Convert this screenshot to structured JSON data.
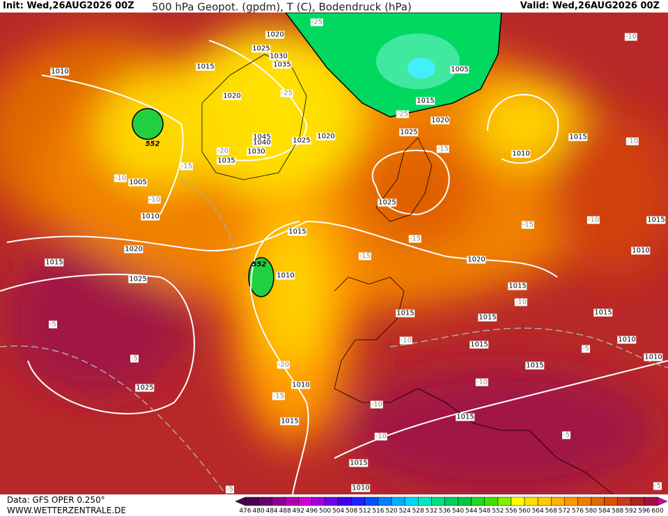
{
  "header": {
    "init": "Init: Wed,26AUG2026 00Z",
    "title": "500 hPa Geopot. (gpdm), T (C), Bodendruck (hPa)",
    "valid": "Valid: Wed,26AUG2026 00Z"
  },
  "footer": {
    "data": "Data: GFS OPER 0.250°",
    "site": "WWW.WETTERZENTRALE.DE"
  },
  "colorbar": {
    "ticks": [
      476,
      480,
      484,
      488,
      492,
      496,
      500,
      504,
      508,
      512,
      516,
      520,
      524,
      528,
      532,
      536,
      540,
      544,
      548,
      552,
      556,
      560,
      564,
      568,
      572,
      576,
      580,
      584,
      588,
      592,
      596,
      600
    ],
    "colors": [
      "#4b0050",
      "#6a006e",
      "#8c0090",
      "#b000b4",
      "#d000d8",
      "#a000e0",
      "#7000e8",
      "#4000f0",
      "#2020ff",
      "#0050ff",
      "#0080ff",
      "#00b0ff",
      "#00d8ff",
      "#00e8c0",
      "#00e080",
      "#00d060",
      "#00c840",
      "#20d820",
      "#40e000",
      "#80f000",
      "#ffff00",
      "#ffe000",
      "#ffc800",
      "#ffb000",
      "#ff9800",
      "#f08000",
      "#e06800",
      "#d85000",
      "#c83820",
      "#b02020",
      "#a01040",
      "#d000a0"
    ]
  },
  "labels": {
    "isobars": [
      "1010",
      "1020",
      "1025",
      "1030",
      "1035",
      "1015",
      "1020",
      "1045",
      "1040",
      "1030",
      "1035",
      "1025",
      "1020",
      "1005",
      "1010",
      "1020",
      "1015",
      "1025",
      "1025",
      "1015",
      "1010",
      "1010",
      "1015",
      "1015",
      "1010",
      "1005",
      "1015",
      "1020",
      "1025",
      "1010",
      "1015",
      "1025",
      "1020",
      "1015",
      "1015",
      "1015",
      "1015",
      "1015",
      "1015",
      "1010",
      "1015",
      "1010",
      "1010",
      "1015"
    ],
    "temperatures": [
      "-25",
      "-25",
      "-25",
      "-20",
      "-15",
      "-10",
      "-10",
      "-15",
      "-15",
      "-15",
      "-15",
      "-10",
      "-10",
      "-10",
      "-10",
      "-10",
      "-5",
      "-10",
      "-10",
      "-10",
      "-5",
      "-5",
      "-5",
      "-20",
      "-15",
      "-5",
      "-5"
    ],
    "geopotential": [
      "552",
      "552"
    ]
  }
}
